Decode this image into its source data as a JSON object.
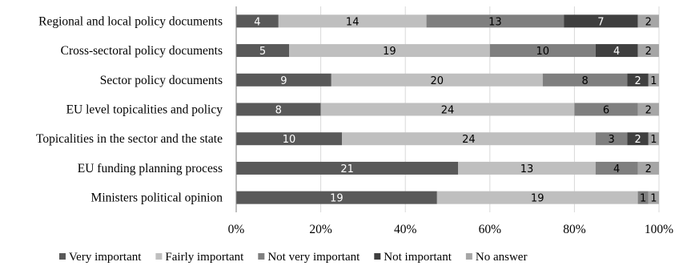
{
  "chart_data": {
    "type": "bar",
    "orientation": "horizontal",
    "stacked": "percent",
    "title": "",
    "xlabel": "",
    "ylabel": "",
    "xlim": [
      0,
      100
    ],
    "x_ticks": [
      "0%",
      "20%",
      "40%",
      "60%",
      "80%",
      "100%"
    ],
    "grid": "vertical",
    "legend_position": "bottom",
    "categories": [
      "Regional and local policy documents",
      "Cross-sectoral policy documents",
      "Sector policy documents",
      "EU level topicalities and policy",
      "Topicalities in the sector and the state",
      "EU funding planning process",
      "Ministers political opinion"
    ],
    "series": [
      {
        "name": "Very important",
        "color": "#595959",
        "label_color": "#ffffff",
        "values": [
          4,
          5,
          9,
          8,
          10,
          21,
          19
        ]
      },
      {
        "name": "Fairly important",
        "color": "#bfbfbf",
        "label_color": "#000000",
        "values": [
          14,
          19,
          20,
          24,
          24,
          13,
          19
        ]
      },
      {
        "name": "Not very important",
        "color": "#7f7f7f",
        "label_color": "#000000",
        "values": [
          13,
          10,
          8,
          6,
          3,
          4,
          1
        ]
      },
      {
        "name": "Not important",
        "color": "#3f3f3f",
        "label_color": "#ffffff",
        "values": [
          7,
          4,
          2,
          0,
          2,
          0,
          0
        ]
      },
      {
        "name": "No answer",
        "color": "#a6a6a6",
        "label_color": "#000000",
        "values": [
          2,
          2,
          1,
          2,
          1,
          2,
          1
        ]
      }
    ]
  }
}
